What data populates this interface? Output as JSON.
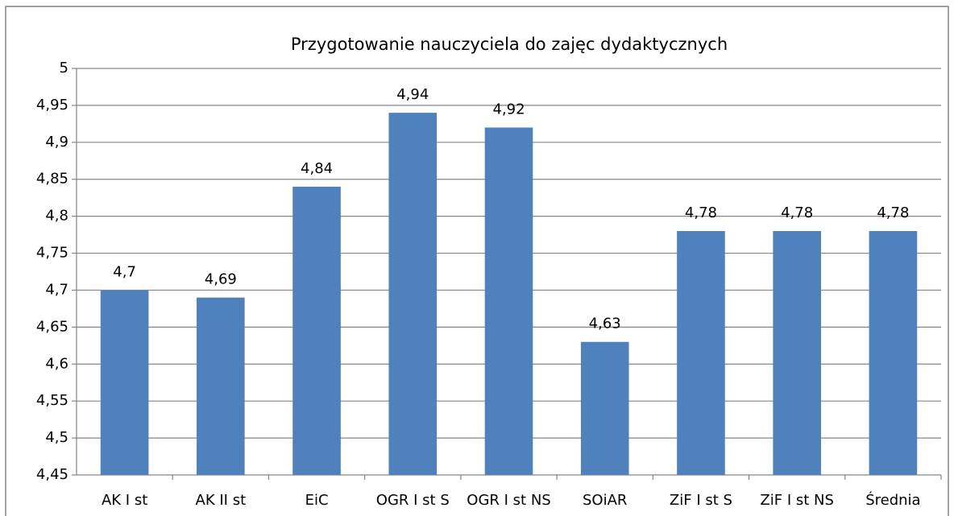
{
  "chart_data": {
    "type": "bar",
    "title": "Przygotowanie nauczyciela do zajęc dydaktycznych",
    "categories": [
      "AK I st",
      "AK II st",
      "EiC",
      "OGR I st S",
      "OGR I st NS",
      "SOiAR",
      "ZiF I st S",
      "ZiF I st NS",
      "Średnia"
    ],
    "values": [
      4.7,
      4.69,
      4.84,
      4.94,
      4.92,
      4.63,
      4.78,
      4.78,
      4.78
    ],
    "value_labels": [
      "4,7",
      "4,69",
      "4,84",
      "4,94",
      "4,92",
      "4,63",
      "4,78",
      "4,78",
      "4,78"
    ],
    "color": "#4f81bd",
    "ylim": [
      4.45,
      5
    ],
    "yticks": [
      {
        "value": 4.45,
        "label": "4,45"
      },
      {
        "value": 4.5,
        "label": "4,5"
      },
      {
        "value": 4.55,
        "label": "4,55"
      },
      {
        "value": 4.6,
        "label": "4,6"
      },
      {
        "value": 4.65,
        "label": "4,65"
      },
      {
        "value": 4.7,
        "label": "4,7"
      },
      {
        "value": 4.75,
        "label": "4,75"
      },
      {
        "value": 4.8,
        "label": "4,8"
      },
      {
        "value": 4.85,
        "label": "4,85"
      },
      {
        "value": 4.9,
        "label": "4,9"
      },
      {
        "value": 4.95,
        "label": "4,95"
      },
      5
    ],
    "grid": true
  }
}
